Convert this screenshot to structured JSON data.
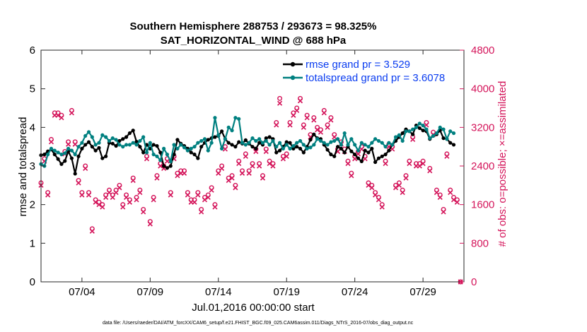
{
  "colors": {
    "rmse": "#000000",
    "totalspread": "#008080",
    "obs": "#d4145a",
    "legend_text": "#0b3df0",
    "axis": "#262626"
  },
  "chart_data": {
    "type": "line",
    "title_line1": "Southern Hemisphere 288753 / 293673 = 98.325%",
    "title_line2": "SAT_HORIZONTAL_WIND @ 688 hPa",
    "xlabel": "Jul.01,2016 00:00:00 start",
    "ylabel_left": "rmse and totalspread",
    "ylabel_right": "# of obs: o=possible; ×=assimilated",
    "footnote": "data file: /Users/raeder/DAI/ATM_forcXX/CAM6_setup/f.e21.FHIST_BGC.f09_025.CAM6assim.011/Diags_NTrS_2016-07/obs_diag_output.nc",
    "xlim": [
      1.0,
      32.0
    ],
    "ylim_left": [
      0,
      6
    ],
    "ylim_right": [
      0,
      4800
    ],
    "x_ticks": [
      {
        "value": 4.0,
        "label": "07/04"
      },
      {
        "value": 9.0,
        "label": "07/09"
      },
      {
        "value": 14.0,
        "label": "07/14"
      },
      {
        "value": 19.0,
        "label": "07/19"
      },
      {
        "value": 24.0,
        "label": "07/24"
      },
      {
        "value": 29.0,
        "label": "07/29"
      }
    ],
    "y_ticks_left": [
      "0",
      "1",
      "2",
      "3",
      "4",
      "5",
      "6"
    ],
    "y_ticks_right": [
      "0",
      "800",
      "1600",
      "2400",
      "3200",
      "4000",
      "4800"
    ],
    "x_start": 1.0,
    "x_step": 0.25,
    "series": [
      {
        "name": "rmse grand pr = 3.529",
        "values": [
          3.28,
          3.3,
          3.38,
          3.43,
          3.3,
          3.18,
          3.05,
          3.13,
          3.38,
          3.2,
          2.8,
          3.25,
          3.45,
          3.55,
          3.62,
          3.5,
          3.4,
          3.47,
          3.2,
          3.25,
          3.6,
          3.58,
          3.52,
          3.65,
          3.7,
          3.75,
          3.85,
          3.92,
          3.63,
          3.5,
          3.35,
          3.55,
          3.45,
          3.55,
          3.52,
          3.35,
          3.0,
          2.95,
          3.0,
          3.3,
          3.68,
          3.58,
          3.52,
          3.45,
          3.35,
          3.3,
          3.2,
          3.5,
          3.6,
          3.68,
          3.72,
          3.75,
          3.78,
          3.9,
          3.7,
          3.6,
          3.55,
          3.5,
          3.62,
          3.58,
          3.67,
          3.58,
          3.5,
          3.45,
          3.6,
          3.55,
          3.72,
          3.75,
          3.7,
          3.35,
          3.4,
          3.5,
          3.62,
          3.6,
          3.45,
          3.5,
          3.45,
          3.35,
          3.5,
          3.68,
          3.82,
          3.72,
          3.7,
          3.55,
          3.42,
          3.3,
          3.25,
          3.5,
          3.45,
          3.35,
          3.5,
          3.38,
          3.3,
          3.2,
          3.12,
          3.4,
          3.35,
          3.45,
          3.1,
          3.2,
          3.25,
          3.3,
          3.4,
          3.55,
          3.65,
          3.75,
          3.85,
          3.95,
          3.9,
          3.82,
          4.05,
          3.98,
          3.92,
          3.9,
          3.7,
          3.78,
          3.82,
          3.92,
          3.72,
          3.7,
          3.6,
          3.55
        ]
      },
      {
        "name": "totalspread grand pr = 3.6078",
        "values": [
          3.05,
          3.0,
          3.3,
          3.45,
          3.4,
          3.35,
          3.3,
          3.33,
          3.45,
          3.4,
          3.3,
          3.5,
          3.6,
          3.78,
          3.88,
          3.75,
          3.55,
          3.6,
          3.8,
          3.75,
          3.65,
          3.72,
          3.68,
          3.55,
          3.5,
          3.55,
          3.55,
          3.6,
          3.55,
          3.65,
          3.75,
          3.35,
          3.6,
          3.3,
          3.25,
          3.15,
          3.45,
          3.3,
          3.12,
          3.55,
          3.45,
          3.55,
          3.48,
          3.4,
          3.45,
          3.5,
          3.6,
          3.65,
          3.7,
          3.4,
          3.6,
          4.25,
          3.8,
          3.45,
          3.7,
          4.0,
          3.92,
          4.25,
          4.22,
          3.6,
          3.55,
          3.6,
          3.72,
          3.65,
          3.7,
          3.6,
          3.65,
          3.55,
          3.65,
          3.5,
          3.6,
          3.45,
          3.55,
          3.45,
          3.52,
          3.6,
          3.65,
          3.55,
          3.45,
          3.48,
          3.55,
          3.7,
          3.65,
          3.6,
          3.55,
          3.62,
          3.65,
          3.7,
          3.55,
          3.85,
          3.55,
          3.7,
          3.55,
          3.4,
          3.6,
          3.55,
          3.5,
          3.6,
          3.7,
          3.65,
          3.6,
          3.5,
          3.6,
          3.55,
          3.75,
          3.8,
          3.65,
          3.9,
          3.9,
          3.95,
          4.0,
          4.1,
          4.05,
          3.95,
          3.72,
          3.78,
          3.85,
          4.0,
          3.95,
          3.7,
          3.9,
          3.85
        ]
      }
    ],
    "obs_possible": [
      [
        1.0,
        2050
      ],
      [
        1.25,
        2550
      ],
      [
        1.5,
        1850
      ],
      [
        1.75,
        2950
      ],
      [
        2.0,
        3500
      ],
      [
        2.25,
        3500
      ],
      [
        2.5,
        3450
      ],
      [
        2.75,
        2700
      ],
      [
        3.0,
        2900
      ],
      [
        3.25,
        3550
      ],
      [
        3.5,
        2900
      ],
      [
        3.75,
        2100
      ],
      [
        4.0,
        1850
      ],
      [
        4.25,
        2400
      ],
      [
        4.5,
        1850
      ],
      [
        4.75,
        1100
      ],
      [
        5.0,
        1700
      ],
      [
        5.25,
        1650
      ],
      [
        5.5,
        1600
      ],
      [
        5.75,
        1800
      ],
      [
        6.0,
        1900
      ],
      [
        6.25,
        1800
      ],
      [
        6.5,
        1900
      ],
      [
        6.75,
        2000
      ],
      [
        7.0,
        1600
      ],
      [
        7.25,
        1800
      ],
      [
        7.5,
        1700
      ],
      [
        7.75,
        2150
      ],
      [
        8.0,
        1750
      ],
      [
        8.25,
        1900
      ],
      [
        8.5,
        1500
      ],
      [
        8.75,
        2600
      ],
      [
        9.0,
        1250
      ],
      [
        9.25,
        1750
      ],
      [
        9.5,
        2200
      ],
      [
        9.75,
        2450
      ],
      [
        10.0,
        2400
      ],
      [
        10.25,
        2550
      ],
      [
        10.5,
        1850
      ],
      [
        10.75,
        2600
      ],
      [
        11.0,
        2250
      ],
      [
        11.25,
        2300
      ],
      [
        11.5,
        2300
      ],
      [
        11.75,
        1850
      ],
      [
        12.0,
        1700
      ],
      [
        12.25,
        1700
      ],
      [
        12.5,
        1850
      ],
      [
        12.75,
        1500
      ],
      [
        13.0,
        1750
      ],
      [
        13.25,
        1800
      ],
      [
        13.5,
        1950
      ],
      [
        13.75,
        1600
      ],
      [
        14.0,
        2300
      ],
      [
        14.25,
        2400
      ],
      [
        14.5,
        2800
      ],
      [
        14.75,
        2150
      ],
      [
        15.0,
        2200
      ],
      [
        15.25,
        2000
      ],
      [
        15.5,
        2500
      ],
      [
        15.75,
        2300
      ],
      [
        16.0,
        2650
      ],
      [
        16.25,
        2300
      ],
      [
        16.5,
        2450
      ],
      [
        16.75,
        2750
      ],
      [
        17.0,
        2450
      ],
      [
        17.25,
        2200
      ],
      [
        17.5,
        2750
      ],
      [
        17.75,
        2500
      ],
      [
        18.0,
        2450
      ],
      [
        18.25,
        3300
      ],
      [
        18.5,
        3800
      ],
      [
        18.75,
        2600
      ],
      [
        19.0,
        2650
      ],
      [
        19.25,
        3300
      ],
      [
        19.5,
        3500
      ],
      [
        19.75,
        3600
      ],
      [
        20.0,
        3800
      ],
      [
        20.25,
        3250
      ],
      [
        20.5,
        3450
      ],
      [
        20.75,
        3050
      ],
      [
        21.0,
        3400
      ],
      [
        21.25,
        3200
      ],
      [
        21.5,
        3150
      ],
      [
        21.75,
        3550
      ],
      [
        22.0,
        3250
      ],
      [
        22.25,
        3400
      ],
      [
        22.5,
        3050
      ],
      [
        22.75,
        2750
      ],
      [
        23.0,
        2900
      ],
      [
        23.25,
        2750
      ],
      [
        23.5,
        2500
      ],
      [
        23.75,
        2250
      ],
      [
        24.0,
        2600
      ],
      [
        24.25,
        2700
      ],
      [
        24.5,
        2800
      ],
      [
        24.75,
        2600
      ],
      [
        25.0,
        2050
      ],
      [
        25.25,
        2000
      ],
      [
        25.5,
        1850
      ],
      [
        25.75,
        1750
      ],
      [
        26.0,
        1600
      ],
      [
        26.25,
        2500
      ],
      [
        26.5,
        2850
      ],
      [
        26.75,
        2800
      ],
      [
        27.0,
        2000
      ],
      [
        27.25,
        2050
      ],
      [
        27.5,
        1900
      ],
      [
        27.75,
        2200
      ],
      [
        28.0,
        2500
      ],
      [
        28.25,
        3000
      ],
      [
        28.5,
        2450
      ],
      [
        28.75,
        2450
      ],
      [
        29.0,
        2500
      ],
      [
        29.25,
        3300
      ],
      [
        29.5,
        2350
      ],
      [
        29.75,
        3100
      ],
      [
        30.0,
        1900
      ],
      [
        30.25,
        1800
      ],
      [
        30.5,
        1500
      ],
      [
        30.75,
        2650
      ],
      [
        31.0,
        1900
      ],
      [
        31.25,
        1750
      ],
      [
        31.5,
        1700
      ],
      [
        31.75,
        0
      ]
    ],
    "obs_assimilated": [
      [
        1.0,
        2000
      ],
      [
        1.25,
        2500
      ],
      [
        1.5,
        1800
      ],
      [
        1.75,
        2900
      ],
      [
        2.0,
        3450
      ],
      [
        2.25,
        3450
      ],
      [
        2.5,
        3400
      ],
      [
        2.75,
        2650
      ],
      [
        3.0,
        2850
      ],
      [
        3.25,
        3500
      ],
      [
        3.5,
        2850
      ],
      [
        3.75,
        2050
      ],
      [
        4.0,
        1800
      ],
      [
        4.25,
        2350
      ],
      [
        4.5,
        1800
      ],
      [
        4.75,
        1050
      ],
      [
        5.0,
        1650
      ],
      [
        5.25,
        1600
      ],
      [
        5.5,
        1550
      ],
      [
        5.75,
        1750
      ],
      [
        6.0,
        1850
      ],
      [
        6.25,
        1750
      ],
      [
        6.5,
        1850
      ],
      [
        6.75,
        1950
      ],
      [
        7.0,
        1550
      ],
      [
        7.25,
        1750
      ],
      [
        7.5,
        1650
      ],
      [
        7.75,
        2100
      ],
      [
        8.0,
        1700
      ],
      [
        8.25,
        1850
      ],
      [
        8.5,
        1450
      ],
      [
        8.75,
        2550
      ],
      [
        9.0,
        1200
      ],
      [
        9.25,
        1700
      ],
      [
        9.5,
        2150
      ],
      [
        9.75,
        2400
      ],
      [
        10.0,
        2350
      ],
      [
        10.25,
        2500
      ],
      [
        10.5,
        1800
      ],
      [
        10.75,
        2550
      ],
      [
        11.0,
        2200
      ],
      [
        11.25,
        2250
      ],
      [
        11.5,
        2250
      ],
      [
        11.75,
        1800
      ],
      [
        12.0,
        1650
      ],
      [
        12.25,
        1650
      ],
      [
        12.5,
        1800
      ],
      [
        12.75,
        1450
      ],
      [
        13.0,
        1700
      ],
      [
        13.25,
        1750
      ],
      [
        13.5,
        1900
      ],
      [
        13.75,
        1550
      ],
      [
        14.0,
        2250
      ],
      [
        14.25,
        2350
      ],
      [
        14.5,
        2750
      ],
      [
        14.75,
        2100
      ],
      [
        15.0,
        2150
      ],
      [
        15.25,
        1950
      ],
      [
        15.5,
        2450
      ],
      [
        15.75,
        2250
      ],
      [
        16.0,
        2600
      ],
      [
        16.25,
        2250
      ],
      [
        16.5,
        2400
      ],
      [
        16.75,
        2700
      ],
      [
        17.0,
        2400
      ],
      [
        17.25,
        2150
      ],
      [
        17.5,
        2700
      ],
      [
        17.75,
        2450
      ],
      [
        18.0,
        2400
      ],
      [
        18.25,
        3250
      ],
      [
        18.5,
        3700
      ],
      [
        18.75,
        2550
      ],
      [
        19.0,
        2600
      ],
      [
        19.25,
        3250
      ],
      [
        19.5,
        3450
      ],
      [
        19.75,
        3550
      ],
      [
        20.0,
        3750
      ],
      [
        20.25,
        3200
      ],
      [
        20.5,
        3400
      ],
      [
        20.75,
        3000
      ],
      [
        21.0,
        3350
      ],
      [
        21.25,
        3150
      ],
      [
        21.5,
        3100
      ],
      [
        21.75,
        3500
      ],
      [
        22.0,
        3200
      ],
      [
        22.25,
        3350
      ],
      [
        22.5,
        3000
      ],
      [
        22.75,
        2700
      ],
      [
        23.0,
        2850
      ],
      [
        23.25,
        2700
      ],
      [
        23.5,
        2450
      ],
      [
        23.75,
        2200
      ],
      [
        24.0,
        2550
      ],
      [
        24.25,
        2650
      ],
      [
        24.5,
        2750
      ],
      [
        24.75,
        2550
      ],
      [
        25.0,
        2000
      ],
      [
        25.25,
        1950
      ],
      [
        25.5,
        1800
      ],
      [
        25.75,
        1700
      ],
      [
        26.0,
        1550
      ],
      [
        26.25,
        2450
      ],
      [
        26.5,
        2800
      ],
      [
        26.75,
        2750
      ],
      [
        27.0,
        1950
      ],
      [
        27.25,
        2000
      ],
      [
        27.5,
        1850
      ],
      [
        27.75,
        2150
      ],
      [
        28.0,
        2450
      ],
      [
        28.25,
        2950
      ],
      [
        28.5,
        2400
      ],
      [
        28.75,
        2400
      ],
      [
        29.0,
        2450
      ],
      [
        29.25,
        3250
      ],
      [
        29.5,
        2300
      ],
      [
        29.75,
        3050
      ],
      [
        30.0,
        1850
      ],
      [
        30.25,
        1750
      ],
      [
        30.5,
        1450
      ],
      [
        30.75,
        2600
      ],
      [
        31.0,
        1850
      ],
      [
        31.25,
        1700
      ],
      [
        31.5,
        1650
      ],
      [
        31.75,
        0
      ]
    ]
  }
}
